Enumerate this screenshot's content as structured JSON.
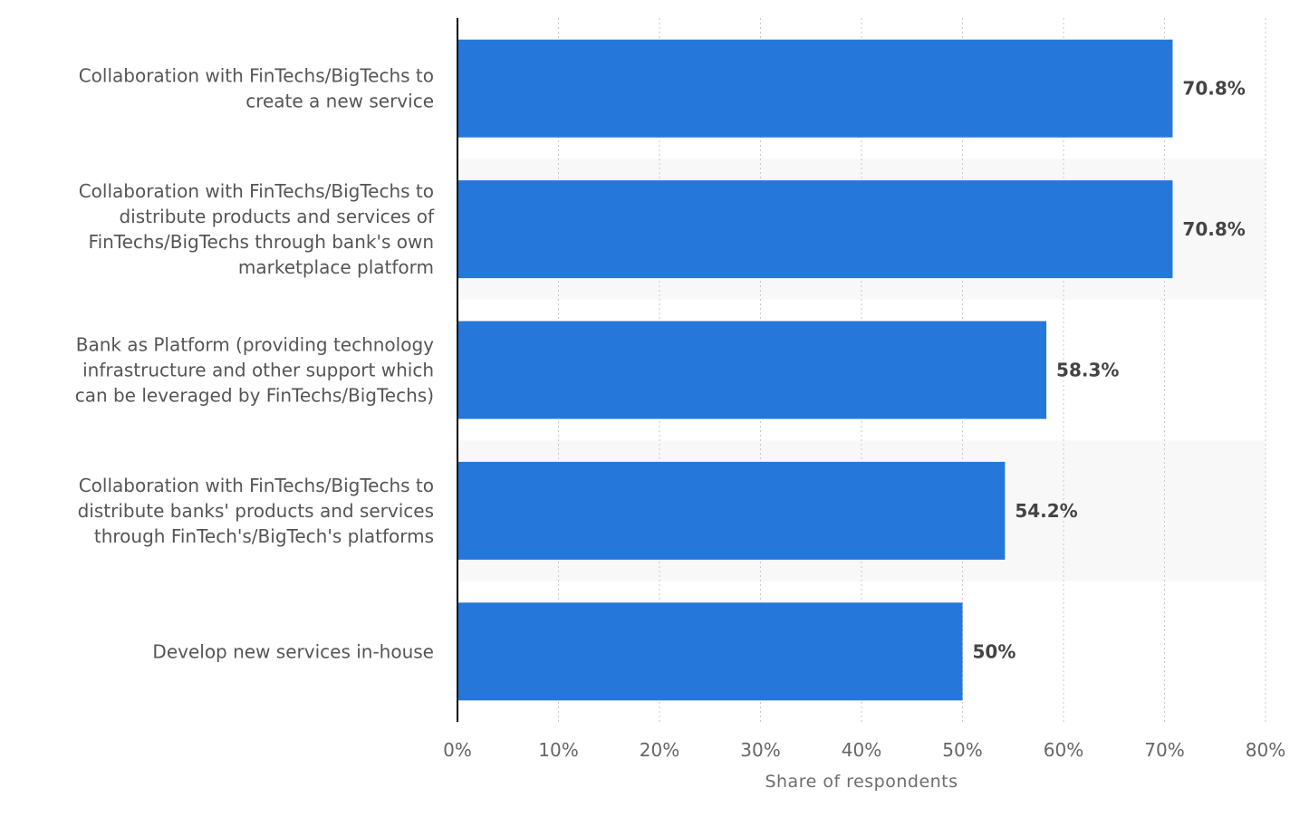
{
  "chart_data": {
    "type": "bar",
    "orientation": "horizontal",
    "categories": [
      [
        "Collaboration with FinTechs/BigTechs to",
        "create a new service"
      ],
      [
        "Collaboration with FinTechs/BigTechs to",
        "distribute products and services of",
        "FinTechs/BigTechs through bank's own",
        "marketplace platform"
      ],
      [
        "Bank as Platform (providing technology",
        "infrastructure and other support which",
        "can be leveraged by FinTechs/BigTechs)"
      ],
      [
        "Collaboration with FinTechs/BigTechs to",
        "distribute banks' products and services",
        "through FinTech's/BigTech's platforms"
      ],
      [
        "Develop new services in-house"
      ]
    ],
    "values": [
      70.8,
      70.8,
      58.3,
      54.2,
      50
    ],
    "value_labels": [
      "70.8%",
      "70.8%",
      "58.3%",
      "54.2%",
      "50%"
    ],
    "xlim": [
      0,
      80
    ],
    "x_ticks": [
      0,
      10,
      20,
      30,
      40,
      50,
      60,
      70,
      80
    ],
    "x_tick_labels": [
      "0%",
      "10%",
      "20%",
      "30%",
      "40%",
      "50%",
      "60%",
      "70%",
      "80%"
    ],
    "xlabel": "Share of respondents",
    "grid": true,
    "colors": {
      "bar": "#2577d9",
      "band": "#f8f8f8",
      "grid": "#c8c8c8",
      "axis": "#000000"
    }
  }
}
